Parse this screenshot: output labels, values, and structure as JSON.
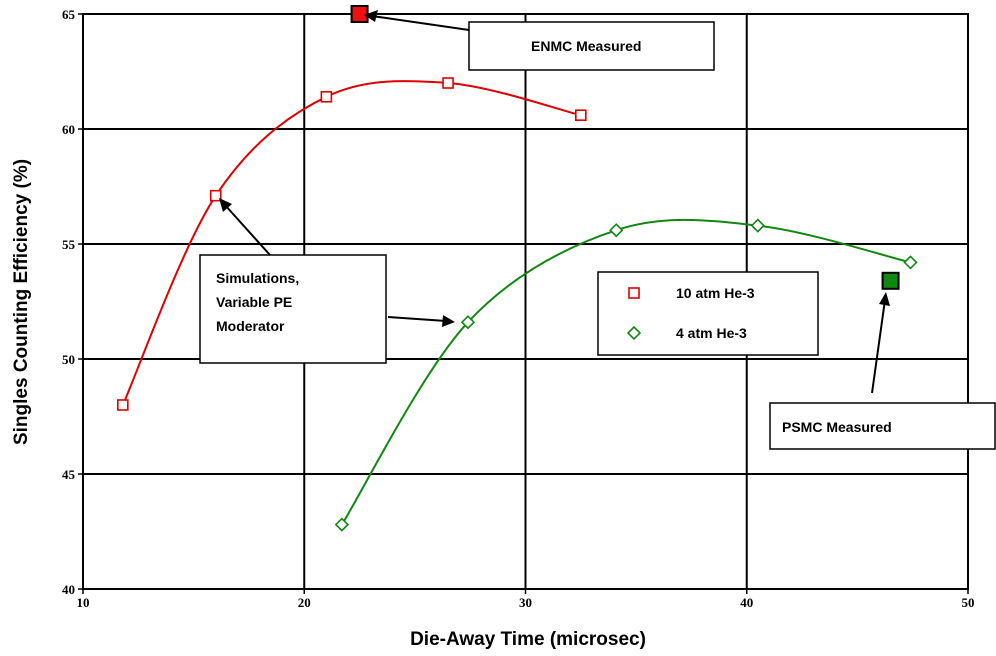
{
  "chart_data": {
    "type": "scatter",
    "title": "",
    "xlabel": "Die-Away Time (microsec)",
    "ylabel": "Singles Counting Efficiency (%)",
    "xlim": [
      10,
      50
    ],
    "ylim": [
      40,
      65
    ],
    "xticks": [
      10,
      20,
      30,
      40,
      50
    ],
    "yticks": [
      40,
      45,
      50,
      55,
      60,
      65
    ],
    "grid": true,
    "legend_position": "right",
    "series": [
      {
        "name": "10 atm He-3",
        "marker": "square-open",
        "color": "#e00000",
        "x": [
          11.8,
          16.0,
          21.0,
          26.5,
          32.5
        ],
        "y": [
          48.0,
          57.1,
          61.4,
          62.0,
          60.6
        ]
      },
      {
        "name": "4 atm He-3",
        "marker": "diamond-open",
        "color": "#118811",
        "x": [
          21.7,
          27.4,
          34.1,
          40.5,
          47.4
        ],
        "y": [
          42.8,
          51.6,
          55.6,
          55.8,
          54.2
        ]
      }
    ],
    "measured_points": [
      {
        "label": "ENMC Measured",
        "x": 22.5,
        "y": 65.0,
        "color": "#ee1111"
      },
      {
        "label": "PSMC Measured",
        "x": 46.5,
        "y": 53.4,
        "color": "#118811"
      }
    ],
    "annotations": {
      "simulations": [
        "Simulations,",
        "Variable PE",
        "Moderator"
      ]
    }
  }
}
